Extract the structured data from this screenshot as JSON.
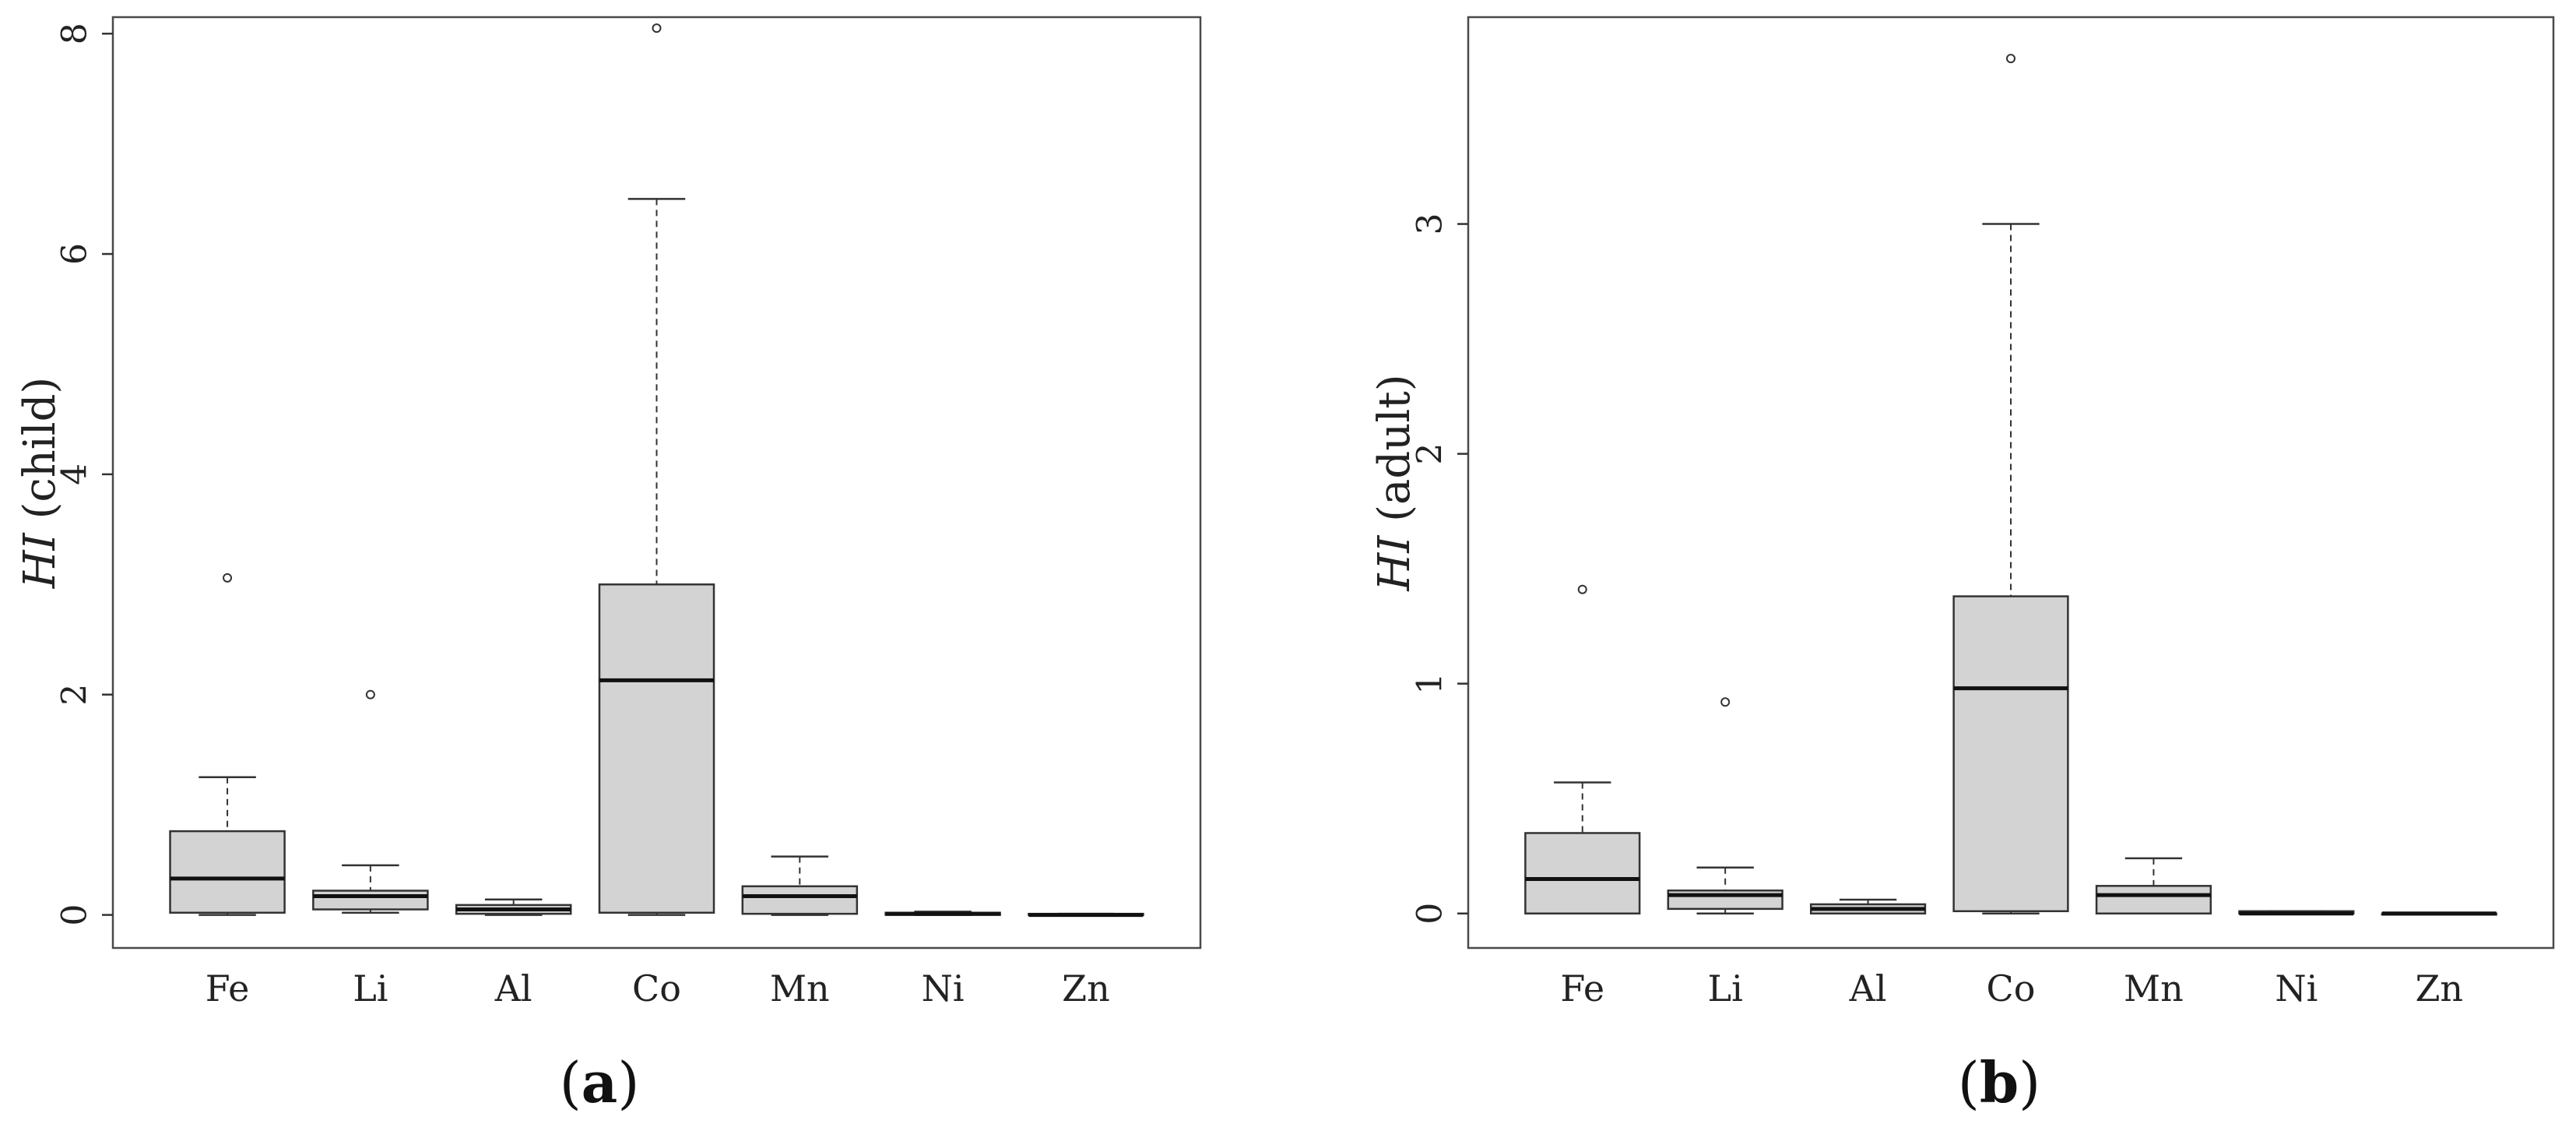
{
  "chart_data": [
    {
      "type": "box",
      "panel_label": "a",
      "ylabel_symbol": "HI",
      "ylabel_text": "(child)",
      "ylim": [
        -0.3,
        8.15
      ],
      "yticks": [
        0,
        2,
        4,
        6,
        8
      ],
      "categories": [
        "Fe",
        "Li",
        "Al",
        "Co",
        "Mn",
        "Ni",
        "Zn"
      ],
      "boxes": [
        {
          "min": 0.0,
          "q1": 0.02,
          "median": 0.33,
          "q3": 0.76,
          "max": 1.25,
          "outliers": [
            3.06
          ]
        },
        {
          "min": 0.02,
          "q1": 0.05,
          "median": 0.17,
          "q3": 0.22,
          "max": 0.45,
          "outliers": [
            2.0
          ]
        },
        {
          "min": 0.0,
          "q1": 0.01,
          "median": 0.05,
          "q3": 0.09,
          "max": 0.14,
          "outliers": []
        },
        {
          "min": 0.0,
          "q1": 0.02,
          "median": 2.13,
          "q3": 3.0,
          "max": 6.5,
          "outliers": [
            8.05
          ]
        },
        {
          "min": 0.0,
          "q1": 0.01,
          "median": 0.17,
          "q3": 0.26,
          "max": 0.53,
          "outliers": []
        },
        {
          "min": 0.0,
          "q1": 0.0,
          "median": 0.01,
          "q3": 0.02,
          "max": 0.03,
          "outliers": []
        },
        {
          "min": 0.0,
          "q1": 0.0,
          "median": 0.0,
          "q3": 0.01,
          "max": 0.01,
          "outliers": []
        }
      ]
    },
    {
      "type": "box",
      "panel_label": "b",
      "ylabel_symbol": "HI",
      "ylabel_text": "(adult)",
      "ylim": [
        -0.15,
        3.9
      ],
      "yticks": [
        0,
        1,
        2,
        3
      ],
      "categories": [
        "Fe",
        "Li",
        "Al",
        "Co",
        "Mn",
        "Ni",
        "Zn"
      ],
      "boxes": [
        {
          "min": 0.0,
          "q1": 0.0,
          "median": 0.15,
          "q3": 0.35,
          "max": 0.57,
          "outliers": [
            1.41
          ]
        },
        {
          "min": 0.0,
          "q1": 0.02,
          "median": 0.08,
          "q3": 0.1,
          "max": 0.2,
          "outliers": [
            0.92
          ]
        },
        {
          "min": 0.0,
          "q1": 0.0,
          "median": 0.02,
          "q3": 0.04,
          "max": 0.06,
          "outliers": []
        },
        {
          "min": 0.0,
          "q1": 0.01,
          "median": 0.98,
          "q3": 1.38,
          "max": 3.0,
          "outliers": [
            3.72
          ]
        },
        {
          "min": 0.0,
          "q1": 0.0,
          "median": 0.08,
          "q3": 0.12,
          "max": 0.24,
          "outliers": []
        },
        {
          "min": 0.0,
          "q1": 0.0,
          "median": 0.0,
          "q3": 0.01,
          "max": 0.01,
          "outliers": []
        },
        {
          "min": 0.0,
          "q1": 0.0,
          "median": 0.0,
          "q3": 0.0,
          "max": 0.0,
          "outliers": []
        }
      ]
    }
  ]
}
